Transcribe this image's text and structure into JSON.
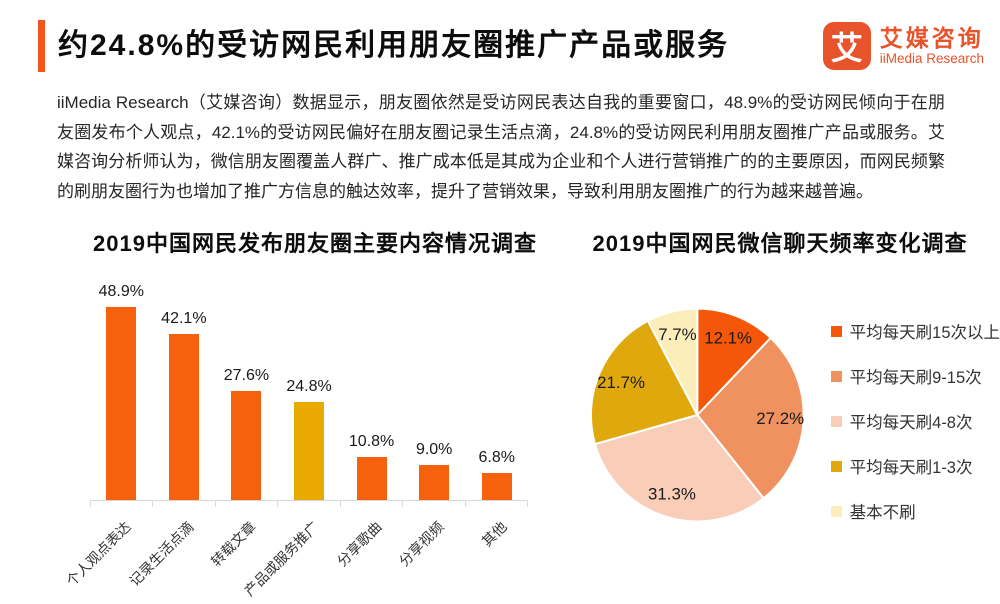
{
  "header": {
    "title": "约24.8%的受访网民利用朋友圈推广产品或服务",
    "logo": {
      "icon_char": "艾",
      "name_cn": "艾媒咨询",
      "name_en": "iiMedia Research"
    }
  },
  "intro_paragraph": "iiMedia Research（艾媒咨询）数据显示，朋友圈依然是受访网民表达自我的重要窗口，48.9%的受访网民倾向于在朋友圈发布个人观点，42.1%的受访网民偏好在朋友圈记录生活点滴，24.8%的受访网民利用朋友圈推广产品或服务。艾媒咨询分析师认为，微信朋友圈覆盖人群广、推广成本低是其成为企业和个人进行营销推广的的主要原因，而网民频繁的刷朋友圈行为也增加了推广方信息的触达效率，提升了营销效果，导致利用朋友圈推广的行为越来越普遍。",
  "colors": {
    "accent_orange": "#F4571E",
    "logo_orange": "#E7532B",
    "bar_orange": "#F5610D",
    "bar_gold": "#E8A900",
    "axis_gray": "#D9D9D9",
    "text_dark": "#1A1A1A"
  },
  "chart_data": [
    {
      "type": "bar",
      "title": "2019中国网民发布朋友圈主要内容情况调查",
      "categories": [
        "个人观点表达",
        "记录生活点滴",
        "转载文章",
        "产品或服务推广",
        "分享歌曲",
        "分享视频",
        "其他"
      ],
      "values": [
        48.9,
        42.1,
        27.6,
        24.8,
        10.8,
        9.0,
        6.8
      ],
      "value_labels": [
        "48.9%",
        "42.1%",
        "27.6%",
        "24.8%",
        "10.8%",
        "9.0%",
        "6.8%"
      ],
      "bar_colors": [
        "#F5610D",
        "#F5610D",
        "#F5610D",
        "#E8A900",
        "#F5610D",
        "#F5610D",
        "#F5610D"
      ],
      "highlighted_category": "产品或服务推广",
      "xlabel": "",
      "ylabel": "",
      "ylim": [
        0,
        50
      ],
      "grid": false,
      "x_tick_rotation_deg": 45
    },
    {
      "type": "pie",
      "title": "2019中国网民微信聊天频率变化调查",
      "start_angle": "12-oclock-clockwise",
      "legend_position": "right",
      "slices": [
        {
          "label": "平均每天刷15次以上",
          "value": 12.1,
          "display": "12.1%",
          "color": "#F4570A"
        },
        {
          "label": "平均每天刷9-15次",
          "value": 27.2,
          "display": "27.2%",
          "color": "#EF9260"
        },
        {
          "label": "平均每天刷4-8次",
          "value": 31.3,
          "display": "31.3%",
          "color": "#F9CDB8"
        },
        {
          "label": "平均每天刷1-3次",
          "value": 21.7,
          "display": "21.7%",
          "color": "#DFA90D"
        },
        {
          "label": "基本不刷",
          "value": 7.7,
          "display": "7.7%",
          "color": "#FCEEBB"
        }
      ]
    }
  ]
}
